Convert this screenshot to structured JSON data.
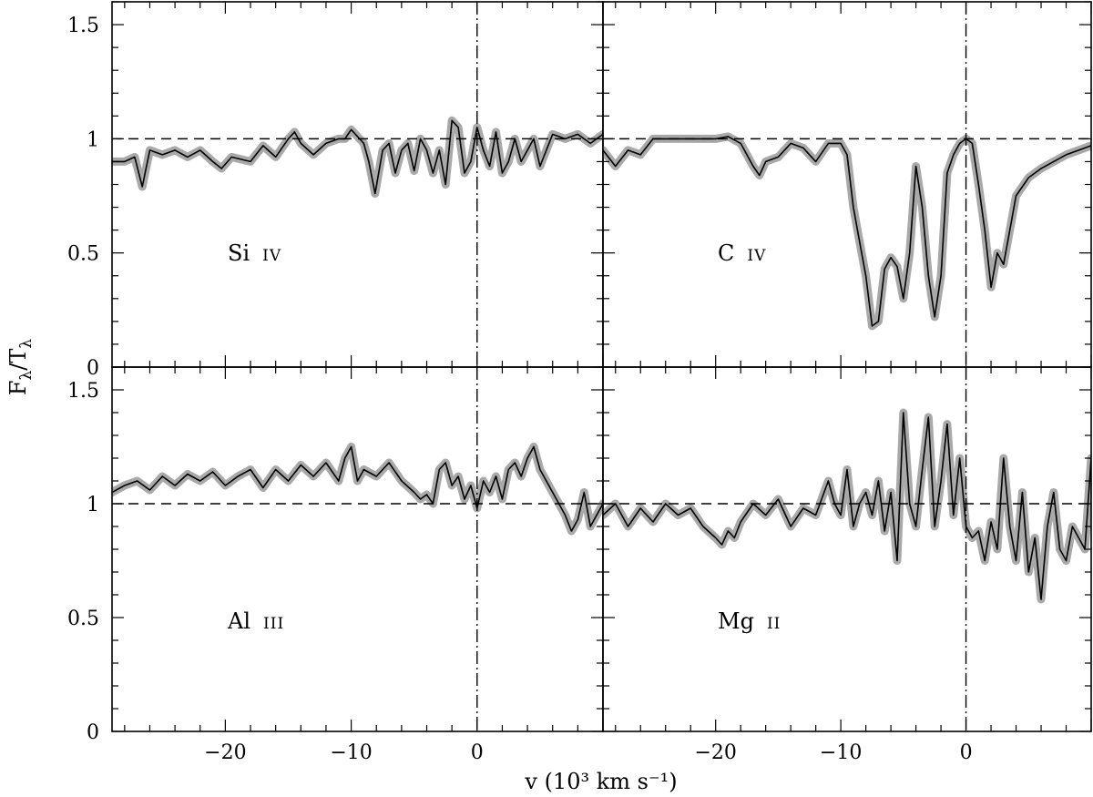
{
  "figure": {
    "ylabel_main": "F",
    "ylabel_sub1": "λ",
    "ylabel_mid": "/T",
    "ylabel_sub2": "λ",
    "xlabel": "v (10³ km s⁻¹)"
  },
  "chart_data": [
    {
      "type": "line",
      "panel": "top-left",
      "element": "Si",
      "ion": "IV",
      "xlim": [
        -29,
        10
      ],
      "ylim": [
        0,
        1.6
      ],
      "yticks": [
        "0",
        "0.5",
        "1",
        "1.5"
      ],
      "xticks": [],
      "reference_y": 1,
      "reference_x": 0,
      "series": [
        {
          "style": "flux with grey error band",
          "x": [
            -29,
            -28,
            -27.2,
            -26.6,
            -26,
            -25,
            -24,
            -23,
            -22,
            -21,
            -20.3,
            -19.5,
            -18,
            -17,
            -16,
            -15,
            -14.5,
            -14,
            -13,
            -12,
            -11,
            -10.5,
            -10,
            -9,
            -8.6,
            -8.1,
            -7.5,
            -7,
            -6.5,
            -6,
            -5.5,
            -5,
            -4.5,
            -4,
            -3.5,
            -3,
            -2.5,
            -2,
            -1.5,
            -1,
            -0.5,
            0,
            0.5,
            1,
            1.5,
            2,
            2.5,
            3,
            3.5,
            4,
            4.5,
            5,
            6,
            7,
            8,
            9,
            10
          ],
          "y": [
            0.9,
            0.9,
            0.92,
            0.79,
            0.95,
            0.93,
            0.95,
            0.92,
            0.95,
            0.9,
            0.87,
            0.92,
            0.9,
            0.97,
            0.92,
            1.0,
            1.03,
            0.98,
            0.93,
            0.98,
            1.0,
            1.0,
            1.04,
            0.98,
            0.9,
            0.76,
            0.95,
            0.98,
            0.85,
            0.95,
            0.98,
            0.86,
            1.0,
            0.95,
            0.85,
            0.95,
            0.8,
            1.08,
            1.05,
            0.85,
            0.9,
            1.05,
            0.95,
            0.88,
            1.03,
            0.85,
            0.9,
            1.0,
            0.9,
            0.95,
            1.0,
            0.88,
            1.02,
            1.0,
            1.02,
            0.98,
            1.02
          ]
        }
      ]
    },
    {
      "type": "line",
      "panel": "top-right",
      "element": "C",
      "ion": "IV",
      "xlim": [
        -29,
        10
      ],
      "ylim": [
        0,
        1.6
      ],
      "yticks": [],
      "xticks": [],
      "reference_y": 1,
      "reference_x": 0,
      "series": [
        {
          "style": "flux with grey error band",
          "x": [
            -29,
            -28,
            -27,
            -26,
            -25,
            -24,
            -22,
            -20,
            -19,
            -18,
            -17,
            -16.5,
            -16,
            -15,
            -14,
            -13,
            -12,
            -11,
            -10,
            -9.5,
            -9,
            -8.5,
            -8,
            -7.5,
            -7,
            -6.5,
            -6,
            -5.5,
            -5,
            -4.5,
            -4,
            -3.5,
            -3,
            -2.5,
            -2,
            -1.5,
            -1,
            -0.5,
            0,
            0.5,
            1,
            1.5,
            2,
            2.5,
            3,
            3.5,
            4,
            5,
            6,
            7,
            8,
            9,
            10
          ],
          "y": [
            0.95,
            0.88,
            0.95,
            0.93,
            1.0,
            1.0,
            1.0,
            1.0,
            1.01,
            0.98,
            0.88,
            0.84,
            0.9,
            0.92,
            0.98,
            0.96,
            0.9,
            0.98,
            0.98,
            0.93,
            0.7,
            0.55,
            0.4,
            0.18,
            0.2,
            0.43,
            0.48,
            0.44,
            0.3,
            0.5,
            0.88,
            0.7,
            0.4,
            0.22,
            0.4,
            0.85,
            0.93,
            0.98,
            1.0,
            0.98,
            0.8,
            0.6,
            0.35,
            0.5,
            0.45,
            0.6,
            0.75,
            0.83,
            0.87,
            0.9,
            0.93,
            0.95,
            0.97
          ]
        }
      ]
    },
    {
      "type": "line",
      "panel": "bottom-left",
      "element": "Al",
      "ion": "III",
      "xlim": [
        -29,
        10
      ],
      "ylim": [
        0,
        1.6
      ],
      "yticks": [
        "0",
        "0.5",
        "1",
        "1.5"
      ],
      "xticks": [
        "−20",
        "−10",
        "0"
      ],
      "reference_y": 1,
      "reference_x": 0,
      "series": [
        {
          "style": "flux with grey error band",
          "x": [
            -29,
            -28,
            -27,
            -26,
            -25,
            -24,
            -23,
            -22,
            -21,
            -20,
            -19,
            -18,
            -17,
            -16,
            -15,
            -14,
            -13,
            -12,
            -11,
            -10.5,
            -10,
            -9.5,
            -9,
            -8,
            -7,
            -6,
            -5,
            -4.5,
            -4,
            -3.5,
            -3,
            -2.5,
            -2,
            -1.5,
            -1,
            -0.5,
            0,
            0.5,
            1,
            1.5,
            2,
            2.5,
            3,
            3.5,
            4,
            4.5,
            5,
            5.5,
            6,
            6.5,
            7,
            7.5,
            8,
            8.5,
            9,
            10
          ],
          "y": [
            1.05,
            1.08,
            1.1,
            1.06,
            1.12,
            1.08,
            1.13,
            1.1,
            1.14,
            1.08,
            1.12,
            1.15,
            1.07,
            1.15,
            1.1,
            1.17,
            1.12,
            1.18,
            1.1,
            1.2,
            1.25,
            1.1,
            1.15,
            1.12,
            1.18,
            1.1,
            1.05,
            1.02,
            1.04,
            1.0,
            1.15,
            1.18,
            1.08,
            1.12,
            1.02,
            1.08,
            0.98,
            1.1,
            1.05,
            1.12,
            1.02,
            1.15,
            1.18,
            1.12,
            1.2,
            1.25,
            1.15,
            1.1,
            1.05,
            1.0,
            0.95,
            0.88,
            0.93,
            1.05,
            0.9,
            1.0
          ]
        }
      ]
    },
    {
      "type": "line",
      "panel": "bottom-right",
      "element": "Mg",
      "ion": "II",
      "xlim": [
        -29,
        10
      ],
      "ylim": [
        0,
        1.6
      ],
      "yticks": [],
      "xticks": [
        "−20",
        "−10",
        "0"
      ],
      "reference_y": 1,
      "reference_x": 0,
      "series": [
        {
          "style": "flux with grey error band",
          "x": [
            -29,
            -28,
            -27,
            -26,
            -25,
            -24,
            -23,
            -22,
            -21,
            -20,
            -19.5,
            -19,
            -18.5,
            -18,
            -17,
            -16,
            -15,
            -14,
            -13,
            -12,
            -11,
            -10.5,
            -10,
            -9.5,
            -9,
            -8.5,
            -8,
            -7.5,
            -7,
            -6.5,
            -6,
            -5.5,
            -5,
            -4.5,
            -4,
            -3.5,
            -3,
            -2.5,
            -2,
            -1.5,
            -1,
            -0.5,
            0,
            0.5,
            1,
            1.5,
            2,
            2.5,
            3,
            3.5,
            4,
            4.5,
            5,
            5.5,
            6,
            6.5,
            7,
            7.5,
            8,
            8.5,
            9,
            9.5,
            10
          ],
          "y": [
            0.95,
            1.0,
            0.9,
            0.98,
            0.92,
            1.0,
            0.95,
            0.98,
            0.9,
            0.85,
            0.82,
            0.88,
            0.85,
            0.92,
            1.0,
            0.95,
            1.02,
            0.9,
            0.98,
            0.95,
            1.1,
            1.0,
            0.95,
            1.15,
            0.9,
            1.0,
            1.05,
            0.95,
            1.1,
            0.88,
            1.05,
            0.75,
            1.4,
            1.0,
            0.9,
            1.15,
            1.38,
            0.9,
            1.1,
            1.35,
            0.95,
            1.2,
            0.9,
            0.85,
            0.88,
            0.75,
            0.92,
            0.8,
            1.2,
            0.9,
            0.75,
            1.05,
            0.7,
            0.85,
            0.58,
            0.9,
            1.05,
            0.8,
            0.75,
            0.9,
            0.85,
            0.8,
            1.2
          ]
        }
      ]
    }
  ]
}
